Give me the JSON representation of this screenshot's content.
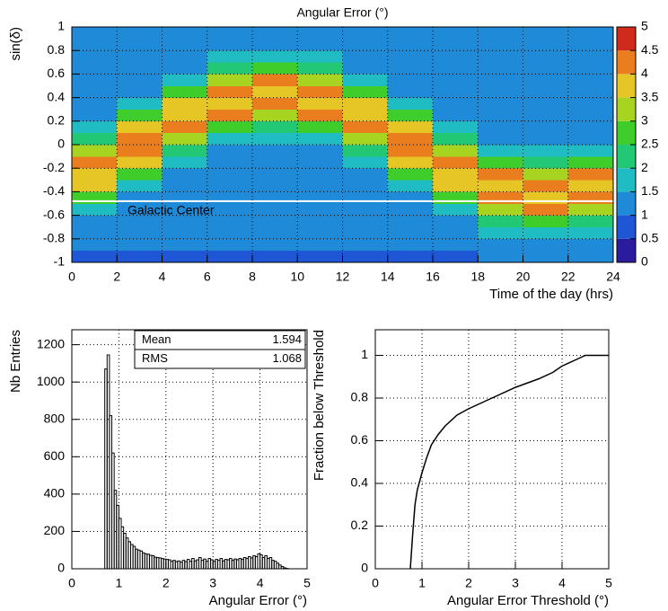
{
  "chart_data": [
    {
      "type": "heatmap",
      "title": "Angular Error (°)",
      "x_label": "Time of the day (hrs)",
      "y_label": "sin(δ)",
      "xlim": [
        0,
        24
      ],
      "ylim": [
        -1,
        1
      ],
      "xticks": [
        0,
        2,
        4,
        6,
        8,
        10,
        12,
        14,
        16,
        18,
        20,
        22,
        24
      ],
      "yticks": [
        -1,
        -0.8,
        -0.6,
        -0.4,
        -0.2,
        0,
        0.2,
        0.4,
        0.6,
        0.8,
        1
      ],
      "grid": true,
      "xbins": [
        0,
        2,
        4,
        6,
        8,
        10,
        12,
        14,
        16,
        18,
        20,
        22,
        24
      ],
      "ybins": [
        -1,
        -0.9,
        -0.8,
        -0.7,
        -0.6,
        -0.5,
        -0.4,
        -0.3,
        -0.2,
        -0.1,
        0,
        0.1,
        0.2,
        0.3,
        0.4,
        0.5,
        0.6,
        0.7,
        0.8,
        0.9,
        1
      ],
      "z": [
        [
          0.9,
          0.9,
          0.9,
          0.9,
          0.9,
          0.9,
          0.9,
          0.9,
          0.9,
          1,
          1,
          1
        ],
        [
          1,
          1,
          1,
          1,
          1,
          1,
          1,
          1,
          1,
          1.2,
          1.3,
          1.2
        ],
        [
          1,
          1,
          1,
          1,
          1,
          1,
          1,
          1,
          1,
          1.5,
          1.8,
          1.5
        ],
        [
          1.3,
          1,
          1,
          1,
          1,
          1,
          1,
          1,
          1.3,
          2.1,
          2.8,
          2.1
        ],
        [
          1.7,
          1,
          1,
          1,
          1,
          1,
          1,
          1,
          1.7,
          3.3,
          4,
          3.3
        ],
        [
          2.6,
          1.2,
          1,
          1,
          1,
          1,
          1,
          1.2,
          2.6,
          4.2,
          3.8,
          4.2
        ],
        [
          3.8,
          1.7,
          1,
          1,
          1,
          1,
          1,
          1.7,
          3.8,
          3.8,
          4.2,
          3.8
        ],
        [
          3.9,
          2.5,
          1.2,
          1,
          1,
          1,
          1.2,
          2.5,
          3.9,
          4,
          3.3,
          4
        ],
        [
          4.1,
          3.7,
          1.6,
          1,
          1,
          1,
          1.6,
          3.7,
          4.1,
          2.8,
          2.1,
          2.8
        ],
        [
          3.4,
          4,
          2.3,
          1.3,
          1.2,
          1.3,
          2.3,
          4,
          3.4,
          1.8,
          1.5,
          1.8
        ],
        [
          2.3,
          4,
          3.4,
          1.8,
          1.5,
          1.8,
          3.4,
          4,
          2.3,
          1.3,
          1.2,
          1.3
        ],
        [
          1.6,
          3.7,
          4.1,
          2.8,
          2.1,
          2.8,
          4.1,
          3.7,
          1.6,
          1,
          1,
          1
        ],
        [
          1.2,
          2.5,
          3.9,
          4,
          3.3,
          4,
          3.9,
          2.5,
          1.2,
          1,
          1,
          1
        ],
        [
          1,
          1.7,
          3.8,
          3.8,
          4.2,
          3.8,
          3.8,
          1.7,
          1,
          1,
          1,
          1
        ],
        [
          1,
          1.2,
          2.6,
          4.2,
          3.8,
          4.2,
          2.6,
          1.2,
          1,
          1,
          1,
          1
        ],
        [
          1,
          1,
          1.7,
          3.3,
          4,
          3.3,
          1.7,
          1,
          1,
          1,
          1,
          1
        ],
        [
          1,
          1,
          1.3,
          2.1,
          2.8,
          2.1,
          1.3,
          1,
          1,
          1,
          1,
          1
        ],
        [
          1,
          1,
          1,
          1.5,
          1.8,
          1.5,
          1,
          1,
          1,
          1,
          1,
          1
        ],
        [
          1,
          1,
          1,
          1.2,
          1.3,
          1.2,
          1,
          1,
          1,
          1,
          1,
          1
        ],
        [
          1,
          1,
          1,
          1,
          1,
          1,
          1,
          1,
          1,
          1,
          1,
          1
        ]
      ],
      "zlim": [
        0,
        5
      ],
      "zticks": [
        0,
        0.5,
        1,
        1.5,
        2,
        2.5,
        3,
        3.5,
        4,
        4.5,
        5
      ],
      "colorscale": [
        "#2b1b9e",
        "#1f56d6",
        "#1e8ad8",
        "#1fbcc4",
        "#22c874",
        "#3fcd2c",
        "#a7d420",
        "#e6c624",
        "#ea7e1e",
        "#cf2a1c"
      ],
      "annotation": {
        "text": "Galactic Center",
        "y": -0.48,
        "color": "#ffffff"
      }
    },
    {
      "type": "histogram",
      "x_label": "Angular Error (°)",
      "y_label": "Nb Entries",
      "xlim": [
        0,
        5
      ],
      "ylim": [
        0,
        1280
      ],
      "xticks": [
        0,
        1,
        2,
        3,
        4,
        5
      ],
      "yticks": [
        0,
        200,
        400,
        600,
        800,
        1000,
        1200
      ],
      "grid": true,
      "color": "#000000",
      "bins": [
        0.7,
        0.75,
        0.8,
        0.85,
        0.9,
        0.95,
        1,
        1.05,
        1.1,
        1.15,
        1.2,
        1.25,
        1.3,
        1.35,
        1.4,
        1.45,
        1.5,
        1.55,
        1.6,
        1.65,
        1.7,
        1.75,
        1.8,
        1.85,
        1.9,
        1.95,
        2,
        2.05,
        2.1,
        2.15,
        2.2,
        2.25,
        2.3,
        2.35,
        2.4,
        2.45,
        2.5,
        2.55,
        2.6,
        2.65,
        2.7,
        2.75,
        2.8,
        2.85,
        2.9,
        2.95,
        3,
        3.05,
        3.1,
        3.15,
        3.2,
        3.25,
        3.3,
        3.35,
        3.4,
        3.45,
        3.5,
        3.55,
        3.6,
        3.65,
        3.7,
        3.75,
        3.8,
        3.85,
        3.9,
        3.95,
        4,
        4.05,
        4.1,
        4.15,
        4.2,
        4.25,
        4.3,
        4.35,
        4.4,
        4.45,
        4.5,
        4.55,
        4.6
      ],
      "values": [
        1070,
        1145,
        820,
        620,
        420,
        340,
        270,
        225,
        190,
        165,
        145,
        130,
        120,
        105,
        100,
        95,
        85,
        80,
        78,
        72,
        70,
        62,
        60,
        58,
        55,
        52,
        50,
        48,
        40,
        45,
        38,
        42,
        35,
        45,
        38,
        50,
        40,
        55,
        42,
        48,
        60,
        45,
        52,
        40,
        55,
        48,
        40,
        50,
        45,
        55,
        42,
        50,
        48,
        55,
        45,
        52,
        48,
        55,
        50,
        60,
        55,
        65,
        58,
        70,
        65,
        80,
        75,
        60,
        70,
        55,
        60,
        45,
        40,
        30,
        20,
        12,
        5,
        2
      ],
      "stats": [
        {
          "label": "Mean",
          "value": 1.594
        },
        {
          "label": "RMS",
          "value": 1.068
        }
      ]
    },
    {
      "type": "line",
      "x_label": "Angular Error Threshold (°)",
      "y_label": "Fraction below Threshold",
      "xlim": [
        0,
        5
      ],
      "ylim": [
        0,
        1.12
      ],
      "xticks": [
        0,
        1,
        2,
        3,
        4,
        5
      ],
      "yticks": [
        0,
        0.2,
        0.4,
        0.6,
        0.8,
        1
      ],
      "grid": true,
      "color": "#000000",
      "x": [
        0.75,
        0.8,
        0.85,
        0.9,
        1,
        1.1,
        1.2,
        1.35,
        1.5,
        1.75,
        2,
        2.5,
        3,
        3.5,
        3.8,
        4,
        4.2,
        4.4,
        4.5,
        5
      ],
      "y": [
        0,
        0.16,
        0.3,
        0.37,
        0.45,
        0.52,
        0.58,
        0.63,
        0.67,
        0.72,
        0.75,
        0.8,
        0.85,
        0.89,
        0.92,
        0.95,
        0.97,
        0.99,
        1,
        1
      ]
    }
  ]
}
